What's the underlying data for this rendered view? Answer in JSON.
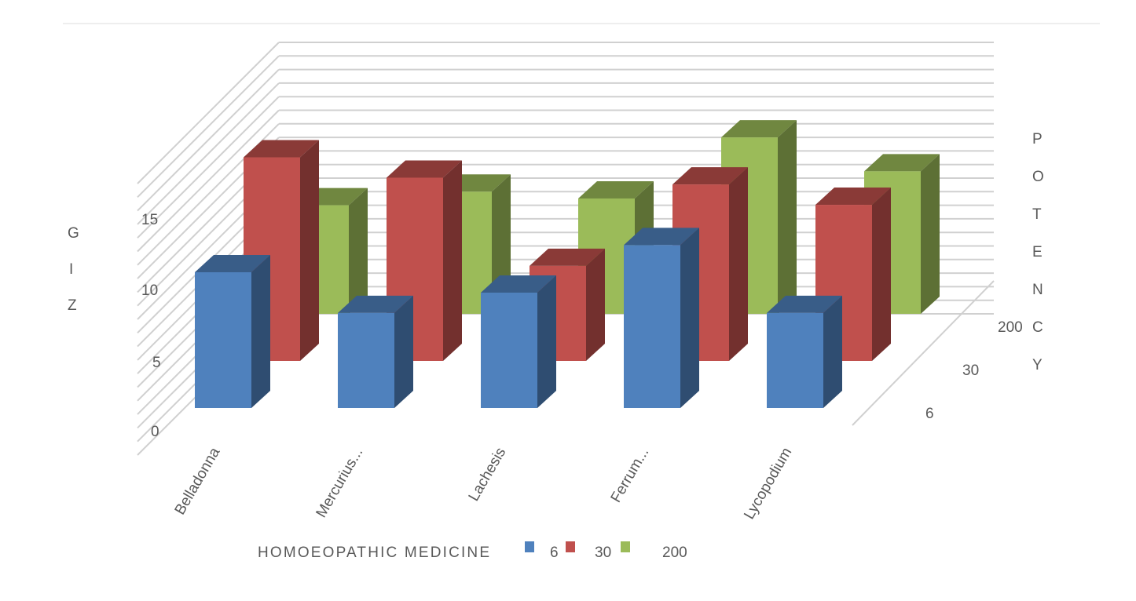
{
  "chart_data": {
    "type": "bar",
    "subtype": "3d-column",
    "title": "",
    "xlabel": "HOMOEOPATHIC MEDICINE",
    "ylabel": "GIZ",
    "zlabel": "POTENCY",
    "ylim": [
      0,
      20
    ],
    "yticks": [
      "0",
      "5",
      "10",
      "15"
    ],
    "grid": true,
    "legend_position": "bottom",
    "categories": [
      "Belladonna",
      "Mercurius...",
      "Lachesis",
      "Ferrum...",
      "Lycopodium"
    ],
    "series": [
      {
        "name": "6",
        "color": "#4F81BD",
        "values": [
          10,
          7,
          8.5,
          12,
          7
        ]
      },
      {
        "name": "30",
        "color": "#C0504D",
        "values": [
          15,
          13.5,
          7,
          13,
          11.5
        ]
      },
      {
        "name": "200",
        "color": "#9BBB59",
        "values": [
          8,
          9,
          8.5,
          13,
          10.5
        ]
      }
    ],
    "depth_tick_labels": [
      "6",
      "30",
      "200"
    ]
  }
}
